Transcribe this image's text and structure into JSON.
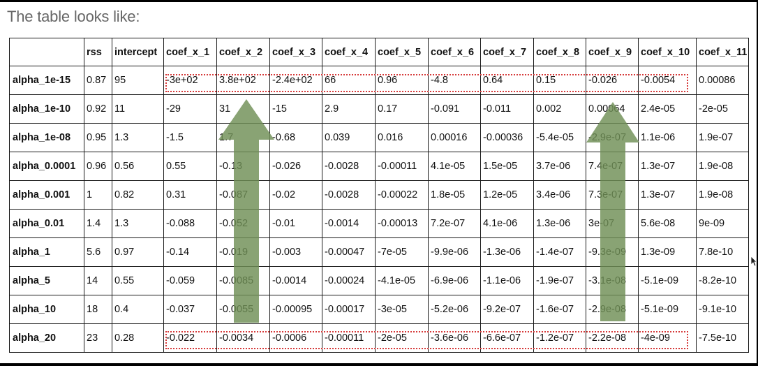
{
  "heading": "The table looks like:",
  "table": {
    "columns": [
      "",
      "rss",
      "intercept",
      "coef_x_1",
      "coef_x_2",
      "coef_x_3",
      "coef_x_4",
      "coef_x_5",
      "coef_x_6",
      "coef_x_7",
      "coef_x_8",
      "coef_x_9",
      "coef_x_10",
      "coef_x_11"
    ],
    "rows": [
      [
        "alpha_1e-15",
        "0.87",
        "95",
        "-3e+02",
        "3.8e+02",
        "-2.4e+02",
        "66",
        "0.96",
        "-4.8",
        "0.64",
        "0.15",
        "-0.026",
        "-0.0054",
        "0.00086"
      ],
      [
        "alpha_1e-10",
        "0.92",
        "11",
        "-29",
        "31",
        "-15",
        "2.9",
        "0.17",
        "-0.091",
        "-0.011",
        "0.002",
        "0.00064",
        "2.4e-05",
        "-2e-05"
      ],
      [
        "alpha_1e-08",
        "0.95",
        "1.3",
        "-1.5",
        "1.7",
        "-0.68",
        "0.039",
        "0.016",
        "0.00016",
        "-0.00036",
        "-5.4e-05",
        "-2.9e-07",
        "1.1e-06",
        "1.9e-07"
      ],
      [
        "alpha_0.0001",
        "0.96",
        "0.56",
        "0.55",
        "-0.13",
        "-0.026",
        "-0.0028",
        "-0.00011",
        "4.1e-05",
        "1.5e-05",
        "3.7e-06",
        "7.4e-07",
        "1.3e-07",
        "1.9e-08"
      ],
      [
        "alpha_0.001",
        "1",
        "0.82",
        "0.31",
        "-0.087",
        "-0.02",
        "-0.0028",
        "-0.00022",
        "1.8e-05",
        "1.2e-05",
        "3.4e-06",
        "7.3e-07",
        "1.3e-07",
        "1.9e-08"
      ],
      [
        "alpha_0.01",
        "1.4",
        "1.3",
        "-0.088",
        "-0.052",
        "-0.01",
        "-0.0014",
        "-0.00013",
        "7.2e-07",
        "4.1e-06",
        "1.3e-06",
        "3e-07",
        "5.6e-08",
        "9e-09"
      ],
      [
        "alpha_1",
        "5.6",
        "0.97",
        "-0.14",
        "-0.019",
        "-0.003",
        "-0.00047",
        "-7e-05",
        "-9.9e-06",
        "-1.3e-06",
        "-1.4e-07",
        "-9.3e-09",
        "1.3e-09",
        "7.8e-10"
      ],
      [
        "alpha_5",
        "14",
        "0.55",
        "-0.059",
        "-0.0085",
        "-0.0014",
        "-0.00024",
        "-4.1e-05",
        "-6.9e-06",
        "-1.1e-06",
        "-1.9e-07",
        "-3.1e-08",
        "-5.1e-09",
        "-8.2e-10"
      ],
      [
        "alpha_10",
        "18",
        "0.4",
        "-0.037",
        "-0.0055",
        "-0.00095",
        "-0.00017",
        "-3e-05",
        "-5.2e-06",
        "-9.2e-07",
        "-1.6e-07",
        "-2.9e-08",
        "-5.1e-09",
        "-9.1e-10"
      ],
      [
        "alpha_20",
        "23",
        "0.28",
        "-0.022",
        "-0.0034",
        "-0.0006",
        "-0.00011",
        "-2e-05",
        "-3.6e-06",
        "-6.6e-07",
        "-1.2e-07",
        "-2.2e-08",
        "-4e-09",
        "-7.5e-10"
      ]
    ]
  },
  "colors": {
    "highlight": "#d63a3a",
    "arrow": "#6f8f55",
    "heading": "#666666"
  },
  "icons": [
    "up-arrow-icon",
    "mouse-cursor-icon"
  ]
}
